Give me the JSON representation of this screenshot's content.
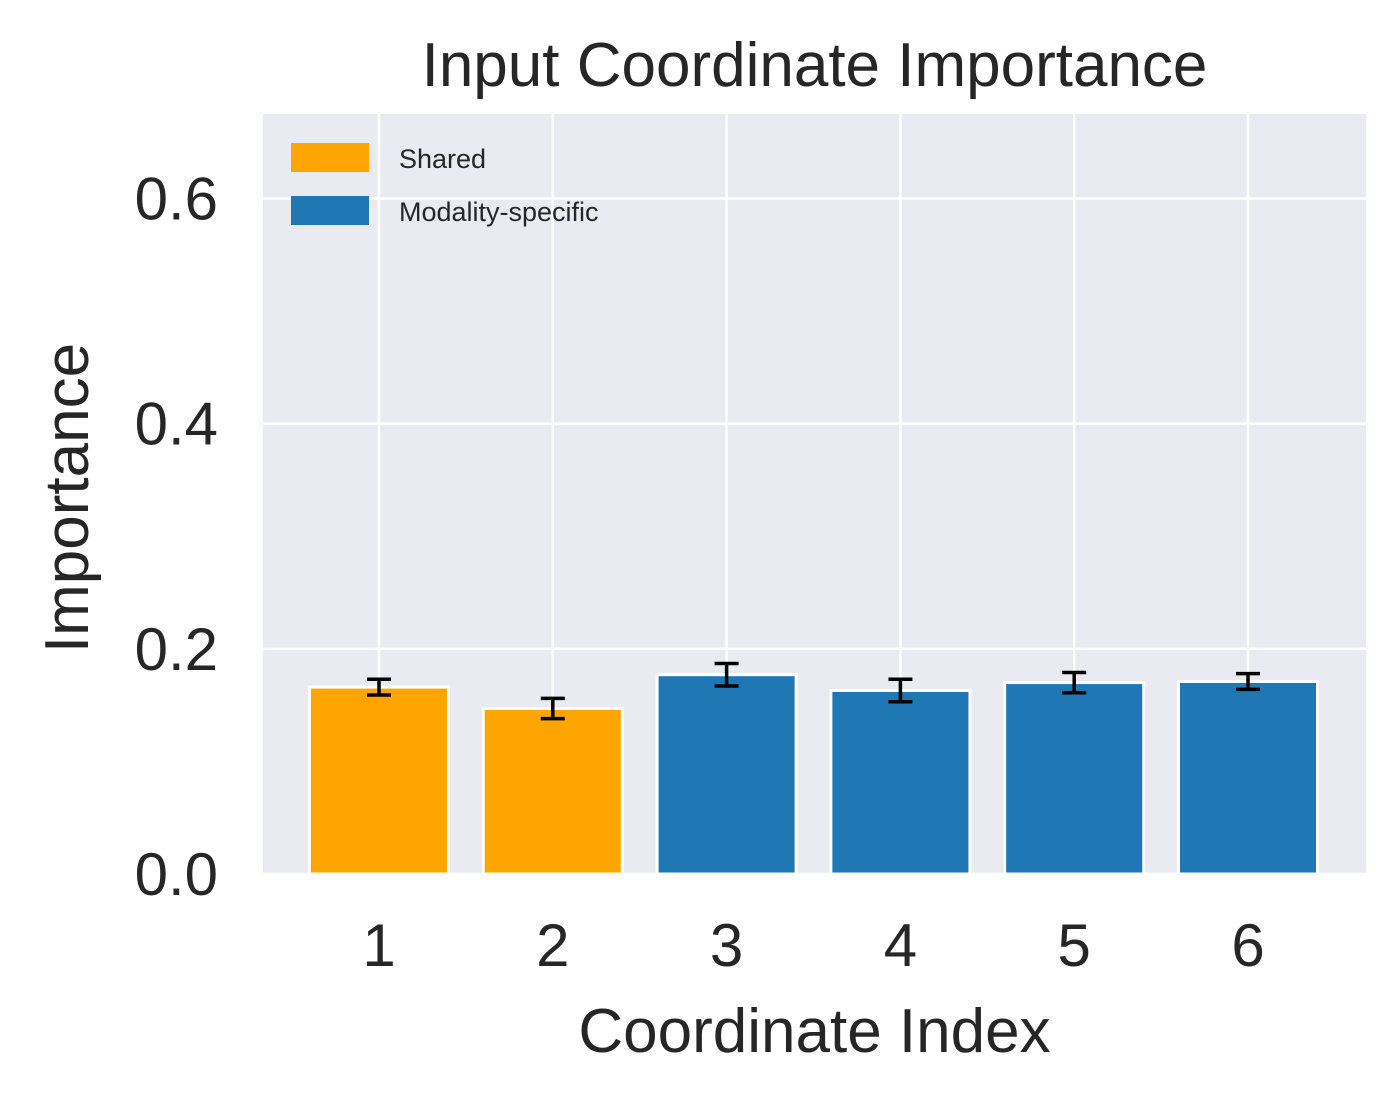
{
  "chart_data": {
    "type": "bar",
    "title": "Input Coordinate Importance",
    "xlabel": "Coordinate Index",
    "ylabel": "Importance",
    "categories": [
      "1",
      "2",
      "3",
      "4",
      "5",
      "6"
    ],
    "values": [
      0.166,
      0.147,
      0.177,
      0.163,
      0.17,
      0.171
    ],
    "errors": [
      0.007,
      0.009,
      0.01,
      0.01,
      0.009,
      0.007
    ],
    "groups": [
      "Shared",
      "Shared",
      "Modality-specific",
      "Modality-specific",
      "Modality-specific",
      "Modality-specific"
    ],
    "ylim": [
      0,
      0.675
    ],
    "yticks": [
      0.0,
      0.2,
      0.4,
      0.6
    ],
    "ytick_labels": [
      "0.0",
      "0.2",
      "0.4",
      "0.6"
    ],
    "grid": true,
    "legend": {
      "placement": "top-left",
      "entries": [
        {
          "label": "Shared",
          "color": "#FFA500"
        },
        {
          "label": "Modality-specific",
          "color": "#1F77B4"
        }
      ]
    },
    "colors": {
      "Shared": "#FFA500",
      "Modality-specific": "#1F77B4",
      "plot_background": "#EAEAF2",
      "grid": "#FFFFFF",
      "text": "#262626",
      "error_bar": "#000000"
    }
  }
}
